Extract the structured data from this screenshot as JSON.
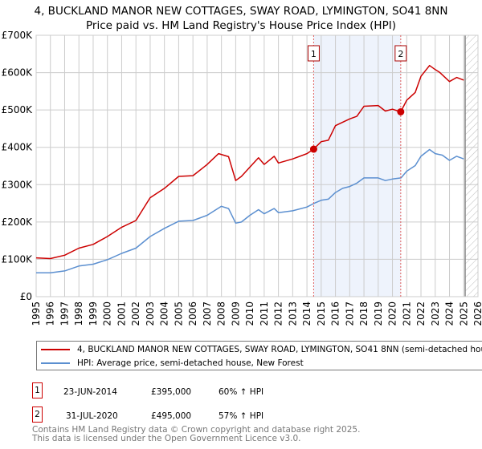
{
  "title": "4, BUCKLAND MANOR NEW COTTAGES, SWAY ROAD, LYMINGTON, SO41 8NN",
  "subtitle": "Price paid vs. HM Land Registry's House Price Index (HPI)",
  "chart_data": {
    "type": "line",
    "xlim": [
      1995,
      2026
    ],
    "ylim": [
      0,
      700000
    ],
    "y_ticks": [
      0,
      100000,
      200000,
      300000,
      400000,
      500000,
      600000,
      700000
    ],
    "y_tick_labels": [
      "£0",
      "£100K",
      "£200K",
      "£300K",
      "£400K",
      "£500K",
      "£600K",
      "£700K"
    ],
    "x_ticks": [
      "1995",
      "1996",
      "1997",
      "1998",
      "1999",
      "2000",
      "2001",
      "2002",
      "2003",
      "2004",
      "2005",
      "2006",
      "2007",
      "2008",
      "2009",
      "2010",
      "2011",
      "2012",
      "2013",
      "2014",
      "2015",
      "2016",
      "2017",
      "2018",
      "2019",
      "2020",
      "2021",
      "2022",
      "2023",
      "2024",
      "2025",
      "2026"
    ],
    "grid": true,
    "colors": {
      "property": "#cc0000",
      "hpi": "#5b8fd0",
      "shade": "#eef3fc"
    },
    "shaded_range": [
      2014.47,
      2020.58
    ],
    "hatched_from": 2025.1,
    "series": [
      {
        "name": "4, BUCKLAND MANOR NEW COTTAGES, SWAY ROAD, LYMINGTON, SO41 8NN (semi-detached house)",
        "x": [
          1995,
          1996,
          1997,
          1998,
          1999,
          2000,
          2001,
          2002,
          2003,
          2004,
          2005,
          2006,
          2007,
          2007.8,
          2008.5,
          2009,
          2009.4,
          2010,
          2010.6,
          2011,
          2011.7,
          2012,
          2013,
          2014,
          2014.47,
          2015,
          2015.5,
          2016,
          2017,
          2017.5,
          2018,
          2019,
          2019.5,
          2020,
          2020.58,
          2021,
          2021.6,
          2022,
          2022.6,
          2023,
          2023.3,
          2024,
          2024.5,
          2025
        ],
        "values": [
          104000,
          102000,
          111000,
          130000,
          140000,
          161000,
          186000,
          204000,
          265000,
          290000,
          322000,
          324000,
          354000,
          383000,
          375000,
          311000,
          322000,
          347000,
          372000,
          354000,
          376000,
          358000,
          369000,
          383000,
          395000,
          415000,
          419000,
          458000,
          476000,
          483000,
          510000,
          512000,
          497000,
          502000,
          495000,
          526000,
          547000,
          590000,
          619000,
          608000,
          601000,
          576000,
          587000,
          580000
        ]
      },
      {
        "name": "HPI: Average price, semi-detached house, New Forest",
        "x": [
          1995,
          1996,
          1997,
          1998,
          1999,
          2000,
          2001,
          2002,
          2003,
          2004,
          2005,
          2006,
          2007,
          2008,
          2008.5,
          2009,
          2009.4,
          2010,
          2010.6,
          2011,
          2011.7,
          2012,
          2013,
          2014,
          2014.5,
          2015,
          2015.5,
          2016,
          2016.5,
          2017,
          2017.5,
          2018,
          2019,
          2019.5,
          2020,
          2020.6,
          2021,
          2021.6,
          2022,
          2022.6,
          2023,
          2023.5,
          2024,
          2024.5,
          2025
        ],
        "values": [
          64000,
          64000,
          69000,
          82000,
          87000,
          99000,
          116000,
          130000,
          161000,
          183000,
          202000,
          204000,
          218000,
          242000,
          236000,
          197000,
          200000,
          218000,
          233000,
          222000,
          236000,
          225000,
          230000,
          240000,
          250000,
          258000,
          261000,
          279000,
          290000,
          295000,
          304000,
          318000,
          318000,
          311000,
          315000,
          318000,
          336000,
          351000,
          376000,
          394000,
          383000,
          379000,
          365000,
          376000,
          369000
        ]
      }
    ],
    "sales": [
      {
        "label": "1",
        "x": 2014.47,
        "value": 395000,
        "date": "23-JUN-2014",
        "price": "£395,000",
        "hpi": "60% ↑ HPI"
      },
      {
        "label": "2",
        "x": 2020.58,
        "value": 495000,
        "date": "31-JUL-2020",
        "price": "£495,000",
        "hpi": "57% ↑ HPI"
      }
    ]
  },
  "legend": {
    "property": "4, BUCKLAND MANOR NEW COTTAGES, SWAY ROAD, LYMINGTON, SO41 8NN (semi-detached house)",
    "hpi": "HPI: Average price, semi-detached house, New Forest"
  },
  "footer": {
    "line1": "Contains HM Land Registry data © Crown copyright and database right 2025.",
    "line2": "This data is licensed under the Open Government Licence v3.0."
  }
}
